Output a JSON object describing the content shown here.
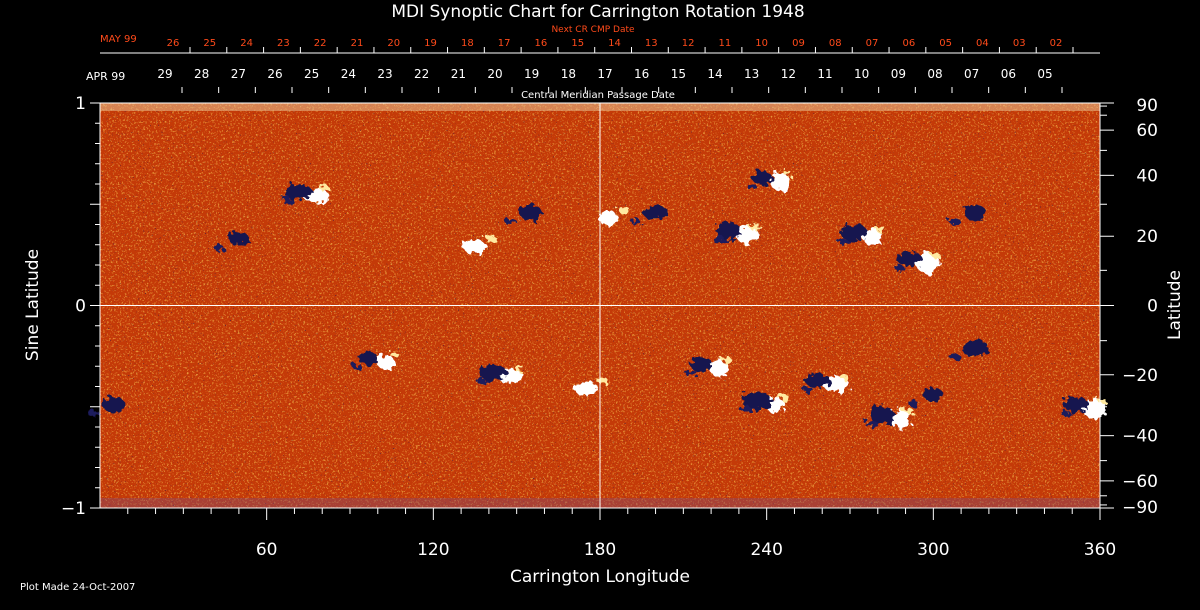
{
  "chart_data": {
    "type": "heatmap",
    "title": "MDI Synoptic Chart for Carrington Rotation 1948",
    "xlabel": "Carrington Longitude",
    "ylabel_left": "Sine Latitude",
    "ylabel_right": "Latitude",
    "x_range": [
      0,
      360
    ],
    "y_range": [
      -1,
      1
    ],
    "x_ticks": [
      60,
      120,
      180,
      240,
      300,
      360
    ],
    "y_ticks_left": [
      {
        "value": 1,
        "label": "1"
      },
      {
        "value": 0,
        "label": "0"
      },
      {
        "value": -1,
        "label": "−1"
      }
    ],
    "y_ticks_right": [
      90,
      60,
      40,
      20,
      0,
      -20,
      -40,
      -60,
      -90
    ],
    "y_ticks_right_labels": [
      "90",
      "60",
      "40",
      "20",
      "0",
      "−20",
      "−40",
      "−60",
      "−90"
    ],
    "top_axis": {
      "label": "Central Meridian Passage Date",
      "month_label": "APR 99",
      "dates": [
        "29",
        "28",
        "27",
        "26",
        "25",
        "24",
        "23",
        "22",
        "21",
        "20",
        "19",
        "18",
        "17",
        "16",
        "15",
        "14",
        "13",
        "12",
        "11",
        "10",
        "09",
        "08",
        "07",
        "06",
        "05"
      ]
    },
    "next_axis": {
      "label": "Next CR CMP Date",
      "month_label": "MAY 99",
      "dates": [
        "26",
        "25",
        "24",
        "23",
        "22",
        "21",
        "20",
        "19",
        "18",
        "17",
        "16",
        "15",
        "14",
        "13",
        "12",
        "11",
        "10",
        "09",
        "08",
        "07",
        "06",
        "05",
        "04",
        "03",
        "02"
      ]
    },
    "grid": {
      "vertical_at": 180,
      "horizontal_at": 0
    },
    "colors": {
      "background": "#c83c08",
      "positive": "#ffffff",
      "negative": "#141450",
      "accent": "#ff4a1a"
    },
    "regions": [
      {
        "lon": 50,
        "sinlat": 0.32,
        "polarity": "negative"
      },
      {
        "lon": 75,
        "sinlat": 0.55,
        "polarity": "mixed"
      },
      {
        "lon": 135,
        "sinlat": 0.3,
        "polarity": "positive"
      },
      {
        "lon": 155,
        "sinlat": 0.45,
        "polarity": "negative"
      },
      {
        "lon": 183,
        "sinlat": 0.44,
        "polarity": "positive"
      },
      {
        "lon": 200,
        "sinlat": 0.45,
        "polarity": "negative"
      },
      {
        "lon": 230,
        "sinlat": 0.36,
        "polarity": "mixed"
      },
      {
        "lon": 242,
        "sinlat": 0.62,
        "polarity": "mixed"
      },
      {
        "lon": 275,
        "sinlat": 0.35,
        "polarity": "mixed"
      },
      {
        "lon": 295,
        "sinlat": 0.22,
        "polarity": "mixed"
      },
      {
        "lon": 315,
        "sinlat": 0.45,
        "polarity": "negative"
      },
      {
        "lon": 100,
        "sinlat": -0.27,
        "polarity": "mixed"
      },
      {
        "lon": 145,
        "sinlat": -0.34,
        "polarity": "mixed"
      },
      {
        "lon": 175,
        "sinlat": -0.4,
        "polarity": "positive"
      },
      {
        "lon": 220,
        "sinlat": -0.3,
        "polarity": "mixed"
      },
      {
        "lon": 240,
        "sinlat": -0.48,
        "polarity": "mixed"
      },
      {
        "lon": 262,
        "sinlat": -0.38,
        "polarity": "mixed"
      },
      {
        "lon": 285,
        "sinlat": -0.55,
        "polarity": "mixed"
      },
      {
        "lon": 300,
        "sinlat": -0.45,
        "polarity": "negative"
      },
      {
        "lon": 315,
        "sinlat": -0.22,
        "polarity": "negative"
      },
      {
        "lon": 355,
        "sinlat": -0.5,
        "polarity": "mixed"
      },
      {
        "lon": 5,
        "sinlat": -0.5,
        "polarity": "negative"
      }
    ]
  },
  "footer": {
    "plot_made": "Plot Made 24-Oct-2007"
  }
}
